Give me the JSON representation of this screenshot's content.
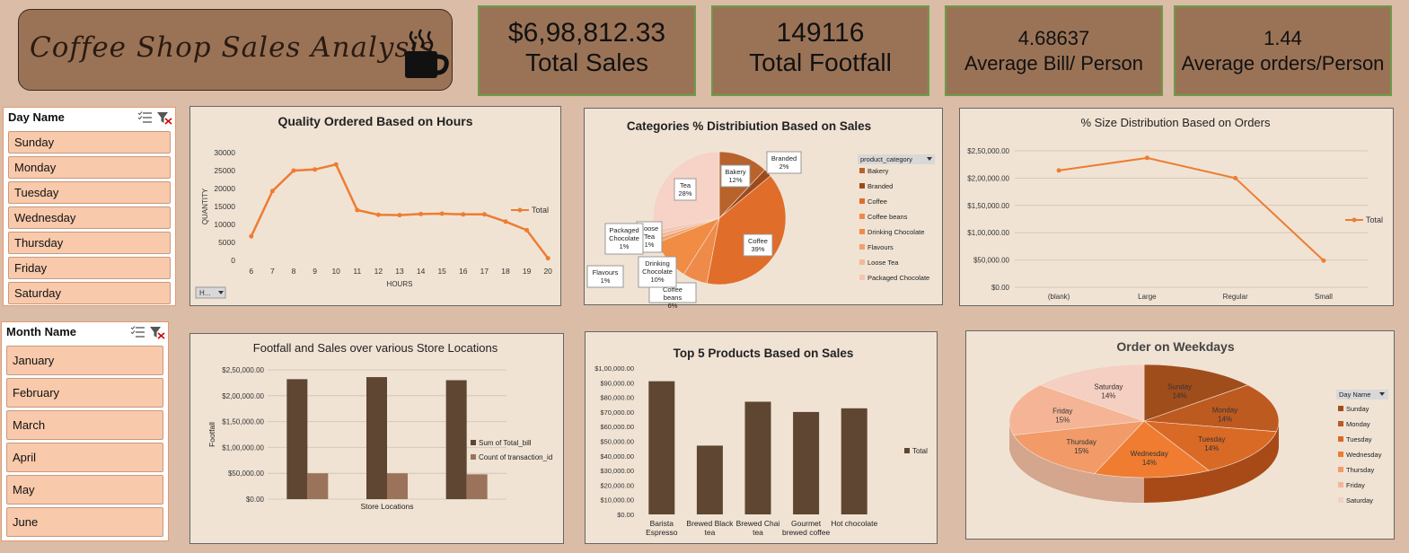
{
  "header": {
    "title": "Coffee Shop Sales Analysis"
  },
  "kpis": [
    {
      "value": "$6,98,812.33",
      "label": "Total Sales"
    },
    {
      "value": "149116",
      "label": "Total Footfall"
    },
    {
      "value": "4.68637",
      "label": "Average Bill/ Person"
    },
    {
      "value": "1.44",
      "label": "Average orders/Person"
    }
  ],
  "day_slicer": {
    "title": "Day Name",
    "items": [
      "Sunday",
      "Monday",
      "Tuesday",
      "Wednesday",
      "Thursday",
      "Friday",
      "Saturday"
    ]
  },
  "month_slicer": {
    "title": "Month Name",
    "items": [
      "January",
      "February",
      "March",
      "April",
      "May",
      "June"
    ]
  },
  "colors": {
    "bar_dark": "#5e4632",
    "bar_light": "#9a735a",
    "line": "#ed7d31",
    "panel": "#f0e3d4",
    "kpi": "#9a7357"
  },
  "chart_data": [
    {
      "id": "hours",
      "type": "line",
      "title": "Quality Ordered Based on Hours",
      "xlabel": "HOURS",
      "ylabel": "QUANTITY",
      "ylim": [
        0,
        30000
      ],
      "yticks": [
        "0",
        "5000",
        "10000",
        "15000",
        "20000",
        "25000",
        "30000"
      ],
      "x": [
        "6",
        "7",
        "8",
        "9",
        "10",
        "11",
        "12",
        "13",
        "14",
        "15",
        "16",
        "17",
        "18",
        "19",
        "20"
      ],
      "series": [
        {
          "name": "Total",
          "values": [
            6700,
            19300,
            25000,
            25300,
            26700,
            14000,
            12700,
            12600,
            12900,
            13000,
            12800,
            12800,
            10800,
            8400,
            600
          ]
        }
      ],
      "filter_button": "H..."
    },
    {
      "id": "categories",
      "type": "pie",
      "title": "Categories % Distribiution Based on Sales",
      "legend_title": "product_category",
      "labels": [
        "Bakery",
        "Branded",
        "Coffee",
        "Coffee beans",
        "Drinking Chocolate",
        "Flavours",
        "Loose Tea",
        "Packaged Chocolate",
        "Tea"
      ],
      "legend_entries": [
        "Bakery",
        "Branded",
        "Coffee",
        "Coffee beans",
        "Drinking Chocolate",
        "Flavours",
        "Loose Tea",
        "Packaged Chocolate"
      ],
      "values": [
        12,
        2,
        39,
        6,
        10,
        1,
        1,
        1,
        28
      ],
      "percent_labels": [
        "12%",
        "2%",
        "39%",
        "6%",
        "10%",
        "1%",
        "1%",
        "1%",
        "28%"
      ],
      "callouts": [
        {
          "name": "Bakery",
          "pct": "12%"
        },
        {
          "name": "Branded",
          "pct": "2%"
        },
        {
          "name": "Coffee",
          "pct": "39%"
        },
        {
          "name": "Coffee beans",
          "pct": "6%"
        },
        {
          "name": "Drinking Chocolate",
          "pct": "10%"
        },
        {
          "name": "Flavours",
          "pct": "1%"
        },
        {
          "name": "Loose Tea",
          "pct": "1%"
        },
        {
          "name": "Packaged Chocolate",
          "pct": "1%"
        },
        {
          "name": "Tea",
          "pct": "28%"
        }
      ],
      "colors": [
        "#b8622c",
        "#9c4a1c",
        "#e06d2a",
        "#ee8a4a",
        "#f08c43",
        "#f0a070",
        "#f4b898",
        "#f3c6b0",
        "#f6d3c6"
      ]
    },
    {
      "id": "size",
      "type": "line",
      "title": "% Size Distribution Based on Orders",
      "ylim": [
        0,
        250000
      ],
      "yticks": [
        "$0.00",
        "$50,000.00",
        "$1,00,000.00",
        "$1,50,000.00",
        "$2,00,000.00",
        "$2,50,000.00"
      ],
      "x": [
        "(blank)",
        "Large",
        "Regular",
        "Small"
      ],
      "series": [
        {
          "name": "Total",
          "values": [
            214000,
            237000,
            200000,
            49000
          ]
        }
      ]
    },
    {
      "id": "locations",
      "type": "bar",
      "title": "Footfall and Sales over various Store Locations",
      "xlabel": "Store Locations",
      "ylabel": "Footfall",
      "ylim": [
        0,
        250000
      ],
      "yticks": [
        "$0.00",
        "$50,000.00",
        "$1,00,000.00",
        "$1,50,000.00",
        "$2,00,000.00",
        "$2,50,000.00"
      ],
      "categories": [
        "",
        "",
        ""
      ],
      "series": [
        {
          "name": "Sum of Total_bill",
          "values": [
            232000,
            236000,
            230000
          ]
        },
        {
          "name": "Count of transaction_id",
          "values": [
            50000,
            50000,
            48000
          ]
        }
      ]
    },
    {
      "id": "top5",
      "type": "bar",
      "title": "Top 5 Products Based on Sales",
      "ylim": [
        0,
        100000
      ],
      "yticks": [
        "$0.00",
        "$10,000.00",
        "$20,000.00",
        "$30,000.00",
        "$40,000.00",
        "$50,000.00",
        "$60,000.00",
        "$70,000.00",
        "$80,000.00",
        "$90,000.00",
        "$1,00,000.00"
      ],
      "categories": [
        [
          "Barista",
          "Espresso"
        ],
        [
          "Brewed Black",
          "tea"
        ],
        [
          "Brewed Chai",
          "tea"
        ],
        [
          "Gourmet",
          "brewed coffee"
        ],
        [
          "Hot chocolate"
        ]
      ],
      "series": [
        {
          "name": "Total",
          "values": [
            91000,
            47000,
            77000,
            70000,
            72500
          ]
        }
      ]
    },
    {
      "id": "weekdays",
      "type": "pie",
      "title": "Order on Weekdays",
      "legend_title": "Day Name",
      "labels": [
        "Sunday",
        "Monday",
        "Tuesday",
        "Wednesday",
        "Thursday",
        "Friday",
        "Saturday"
      ],
      "values": [
        14,
        14,
        14,
        14,
        15,
        15,
        14
      ],
      "percent_labels": [
        "14%",
        "14%",
        "14%",
        "14%",
        "15%",
        "15%",
        "14%"
      ],
      "colors": [
        "#a04d1c",
        "#bd5a20",
        "#d96a26",
        "#ef7c30",
        "#f29a68",
        "#f5b496",
        "#f5cfc1"
      ]
    }
  ]
}
